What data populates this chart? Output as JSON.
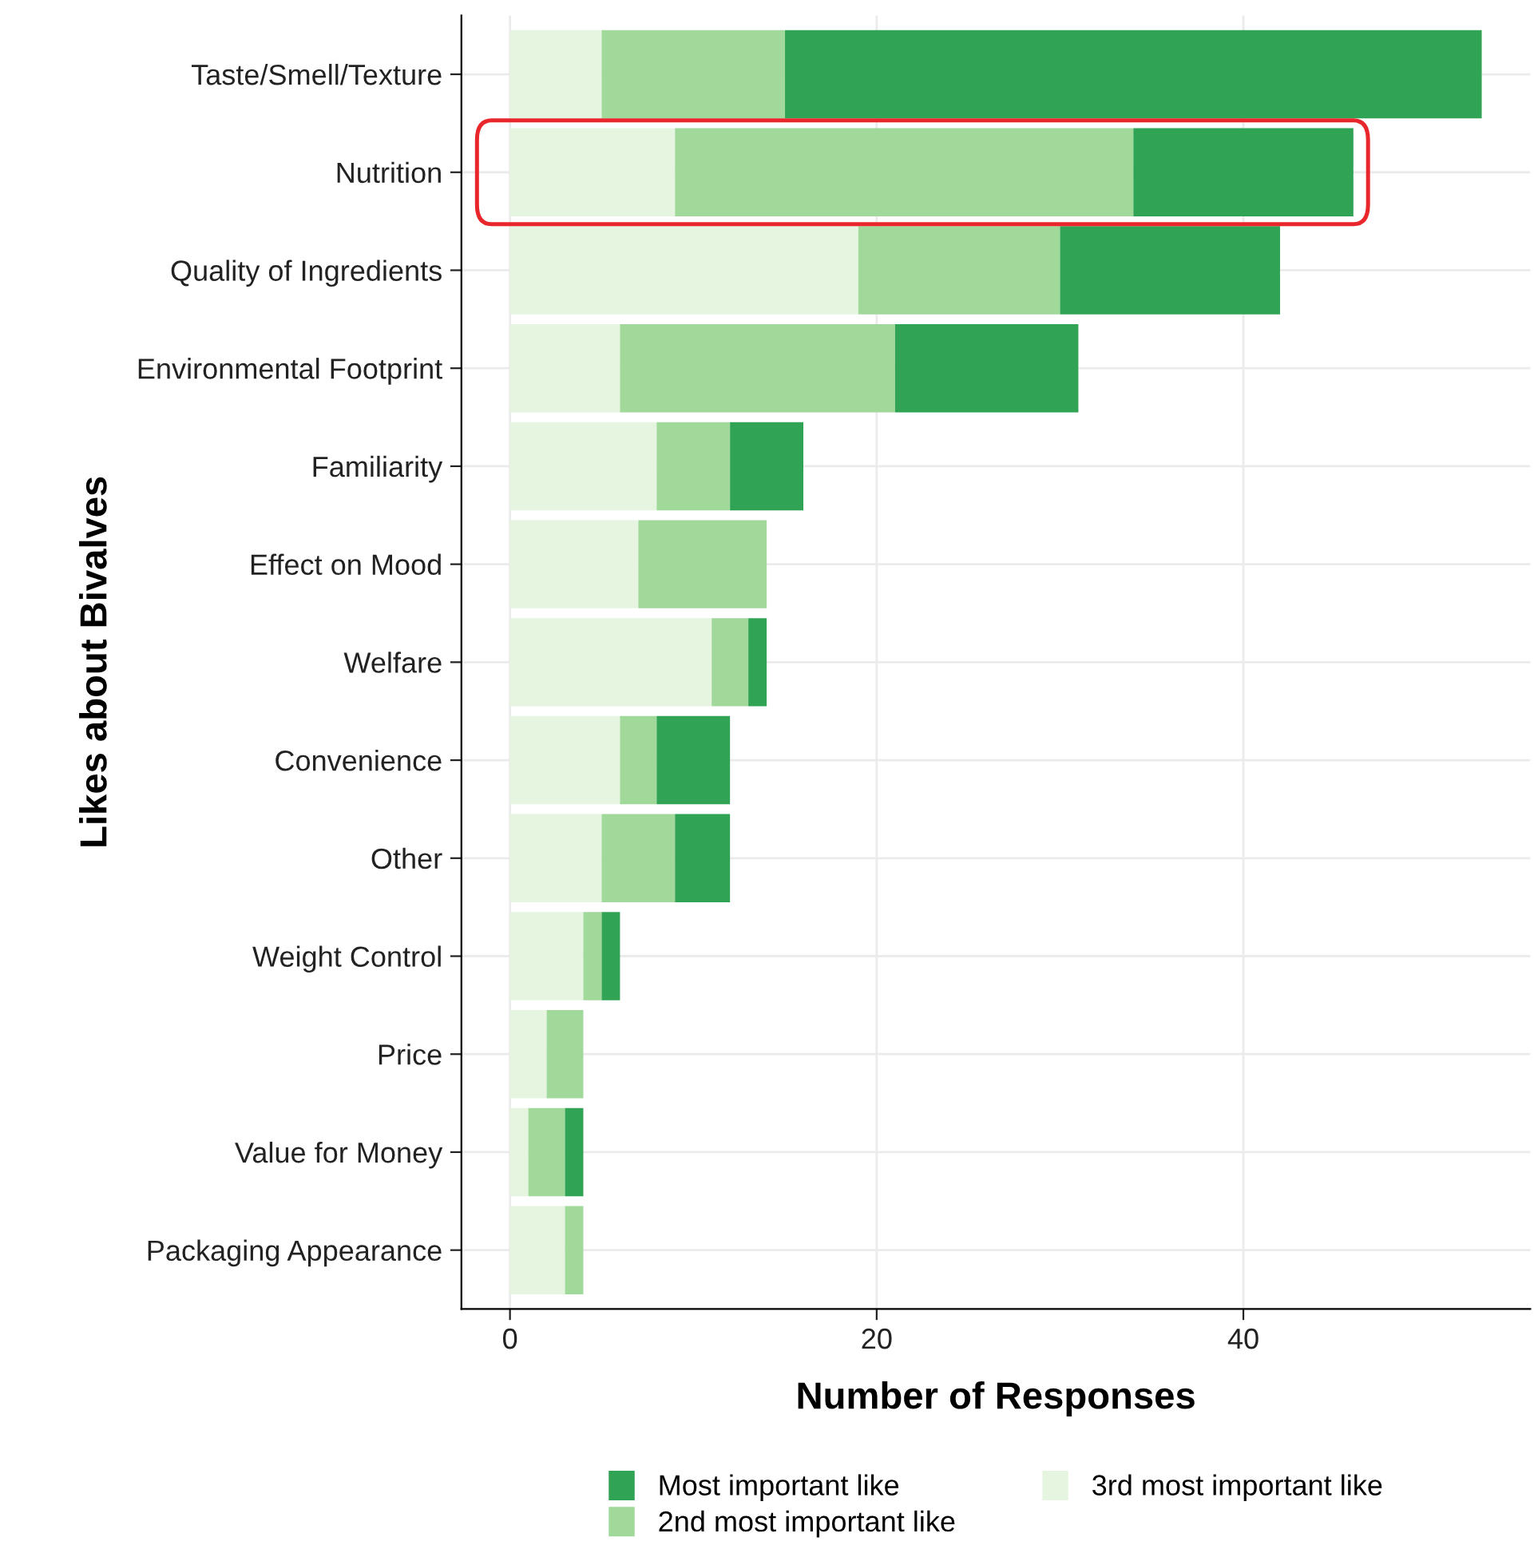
{
  "chart_data": {
    "type": "bar",
    "orientation": "horizontal",
    "stacked": true,
    "xlabel": "Number of Responses",
    "ylabel": "Likes about Bivalves",
    "categories": [
      "Taste/Smell/Texture",
      "Nutrition",
      "Quality of Ingredients",
      "Environmental Footprint",
      "Familiarity",
      "Effect on Mood",
      "Welfare",
      "Convenience",
      "Other",
      "Weight Control",
      "Price",
      "Value for Money",
      "Packaging Appearance"
    ],
    "series": [
      {
        "name": "3rd most important like",
        "color": "#e5f5e0",
        "values": [
          5,
          9,
          19,
          6,
          8,
          7,
          11,
          6,
          5,
          4,
          2,
          1,
          3
        ]
      },
      {
        "name": "2nd most important like",
        "color": "#a1d99b",
        "values": [
          10,
          25,
          11,
          15,
          4,
          7,
          2,
          2,
          4,
          1,
          2,
          2,
          1
        ]
      },
      {
        "name": "Most important like",
        "color": "#31a354",
        "values": [
          38,
          12,
          12,
          10,
          4,
          0,
          1,
          4,
          3,
          1,
          0,
          1,
          0
        ]
      }
    ],
    "xlim": [
      -2.65,
      55.65
    ],
    "xticks": [
      0,
      20,
      40
    ],
    "grid": true,
    "legend": "bottom"
  }
}
